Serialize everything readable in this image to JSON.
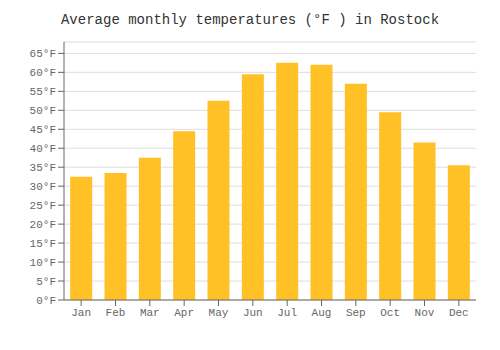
{
  "chart_data": {
    "type": "bar",
    "title": "Average monthly temperatures (°F ) in Rostock",
    "categories": [
      "Jan",
      "Feb",
      "Mar",
      "Apr",
      "May",
      "Jun",
      "Jul",
      "Aug",
      "Sep",
      "Oct",
      "Nov",
      "Dec"
    ],
    "values": [
      32.5,
      33.5,
      37.5,
      44.5,
      52.5,
      59.5,
      62.5,
      62.0,
      57.0,
      49.5,
      41.5,
      35.5
    ],
    "color": "#FFC125",
    "ylim": [
      0,
      68
    ],
    "yticks": [
      {
        "value": 0,
        "label": "0°F"
      },
      {
        "value": 5,
        "label": "5°F"
      },
      {
        "value": 10,
        "label": "10°F"
      },
      {
        "value": 15,
        "label": "15°F"
      },
      {
        "value": 20,
        "label": "20°F"
      },
      {
        "value": 25,
        "label": "25°F"
      },
      {
        "value": 30,
        "label": "30°F"
      },
      {
        "value": 35,
        "label": "35°F"
      },
      {
        "value": 40,
        "label": "40°F"
      },
      {
        "value": 45,
        "label": "45°F"
      },
      {
        "value": 50,
        "label": "50°F"
      },
      {
        "value": 55,
        "label": "55°F"
      },
      {
        "value": 60,
        "label": "60°F"
      },
      {
        "value": 65,
        "label": "65°F"
      }
    ],
    "grid": true
  }
}
